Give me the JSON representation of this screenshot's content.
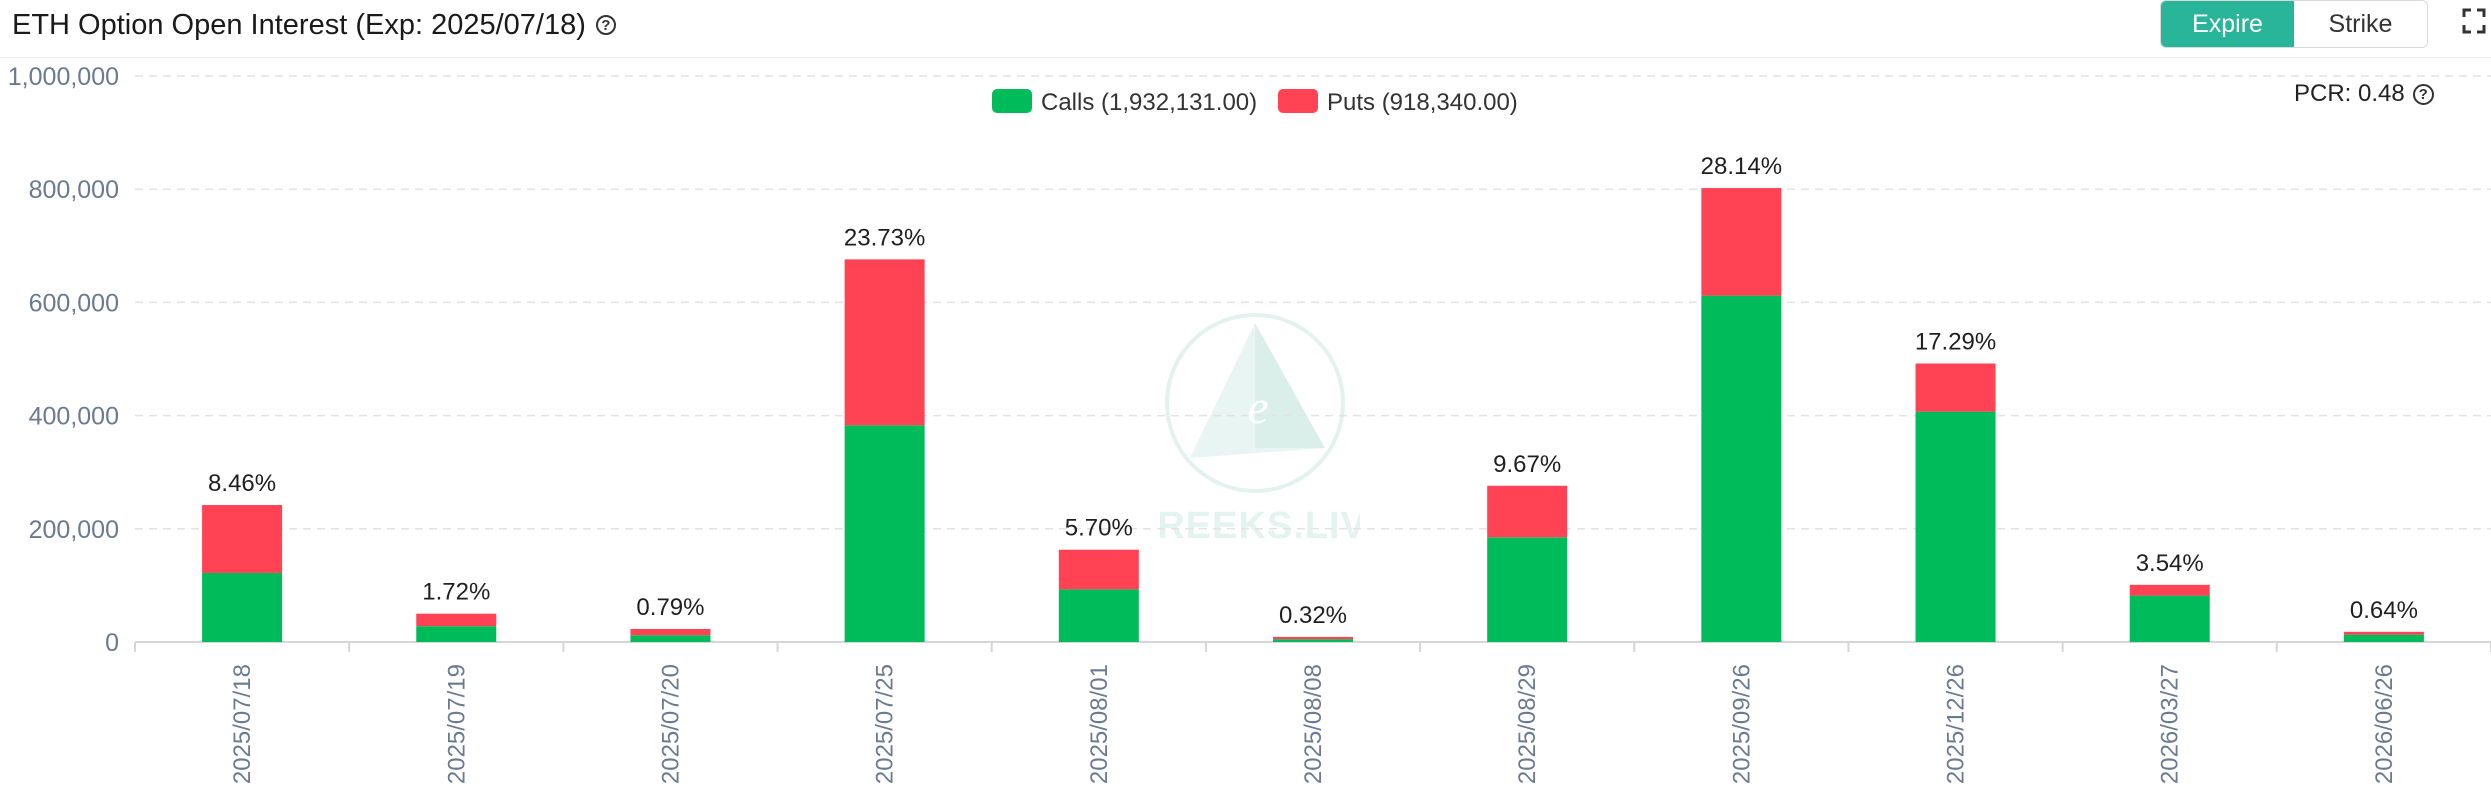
{
  "header": {
    "title": "ETH Option Open Interest (Exp: 2025/07/18)",
    "help_icon": "question-circle-icon",
    "toggle": [
      {
        "label": "Expire",
        "active": true
      },
      {
        "label": "Strike",
        "active": false
      }
    ],
    "fullscreen_icon": "fullscreen-icon"
  },
  "pcr": {
    "label": "PCR: 0.48",
    "icon": "question-circle-icon"
  },
  "watermark": {
    "text": "GREEKS.LIVE"
  },
  "colors": {
    "calls": "#00bb5a",
    "puts": "#ff4254",
    "accent": "#29b59a"
  },
  "chart_data": {
    "type": "bar",
    "stacked": true,
    "categories": [
      "2025/07/18",
      "2025/07/19",
      "2025/07/20",
      "2025/07/25",
      "2025/08/01",
      "2025/08/08",
      "2025/08/29",
      "2025/09/26",
      "2025/12/26",
      "2026/03/27",
      "2026/06/26"
    ],
    "series": [
      {
        "name": "Calls (1,932,131.00)",
        "values": [
          122000,
          28000,
          12000,
          383000,
          93000,
          5000,
          185000,
          612000,
          407000,
          82000,
          13000
        ]
      },
      {
        "name": "Puts (918,340.00)",
        "values": [
          120000,
          22000,
          11000,
          293000,
          70000,
          4000,
          91000,
          190000,
          85000,
          19000,
          5000
        ]
      }
    ],
    "data_labels": [
      "8.46%",
      "1.72%",
      "0.79%",
      "23.73%",
      "5.70%",
      "0.32%",
      "9.67%",
      "28.14%",
      "17.29%",
      "3.54%",
      "0.64%"
    ],
    "yticks": [
      "0",
      "200,000",
      "400,000",
      "600,000",
      "800,000",
      "1,000,000"
    ],
    "ylim": [
      0,
      1000000
    ],
    "grid": true,
    "legend": "top-center"
  }
}
